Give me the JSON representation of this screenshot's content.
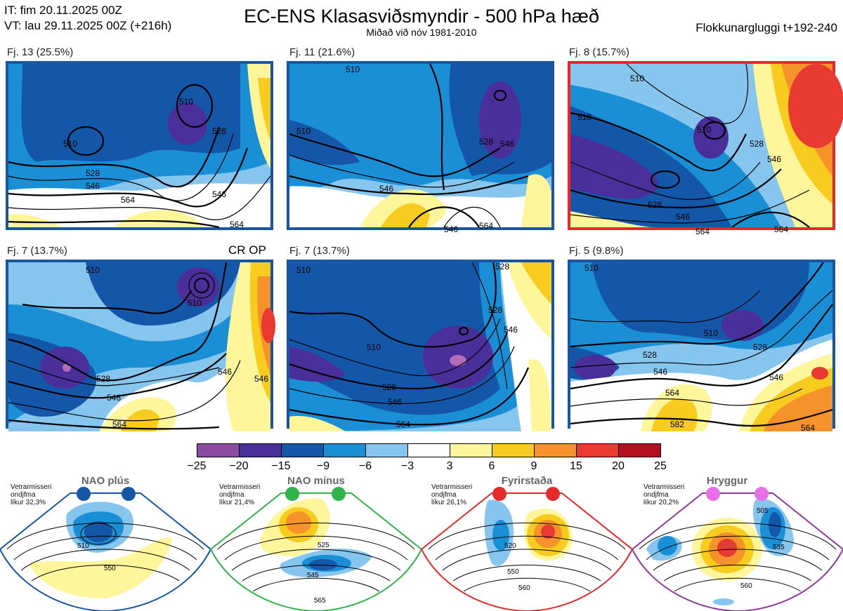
{
  "header": {
    "initial_time": "IT: fim 20.11.2025 00Z",
    "valid_time": "VT: lau 29.11.2025 00Z  (+216h)",
    "title": "EC-ENS Klasasviðsmyndir - 500 hPa hæð",
    "subtitle": "Miðað við nóv 1981-2010",
    "window": "Flokkunargluggi t+192-240"
  },
  "panels": [
    {
      "label": "Fj. 13 (25.5%)",
      "border_color": "#1a55a0",
      "contours": [
        "510",
        "510",
        "528",
        "546",
        "564",
        "564",
        "546",
        "528"
      ]
    },
    {
      "label": "Fj. 11 (21.6%)",
      "border_color": "#1a55a0",
      "contours": [
        "510",
        "510",
        "528",
        "546",
        "546",
        "564",
        "546"
      ]
    },
    {
      "label": "Fj. 8 (15.7%)",
      "border_color": "#e8282a",
      "contours": [
        "510",
        "510",
        "528",
        "546",
        "564",
        "564",
        "546",
        "528",
        "510"
      ]
    },
    {
      "label": "Fj. 7 (13.7%)",
      "border_color": "#1a55a0",
      "tag": "CR OP",
      "contours": [
        "510",
        "510",
        "528",
        "546",
        "564",
        "546",
        "546"
      ]
    },
    {
      "label": "Fj. 7 (13.7%)",
      "border_color": "#1a55a0",
      "contours": [
        "510",
        "510",
        "528",
        "546",
        "564",
        "546",
        "528",
        "528"
      ]
    },
    {
      "label": "Fj. 5 (9.8%)",
      "border_color": "#1a55a0",
      "contours": [
        "510",
        "510",
        "528",
        "546",
        "564",
        "582",
        "564",
        "546",
        "528"
      ]
    }
  ],
  "colorbar": {
    "ticks": [
      "−25",
      "−20",
      "−15",
      "−9",
      "−6",
      "−3",
      "3",
      "6",
      "9",
      "15",
      "20",
      "25"
    ],
    "colors": [
      "#8a4aa0",
      "#4a2f9a",
      "#1456a8",
      "#1a8fd6",
      "#86c6ee",
      "#ffffff",
      "#fff59a",
      "#f7cc1e",
      "#f5922a",
      "#e83a30",
      "#b3101f"
    ]
  },
  "regimes": [
    {
      "info": [
        "Vetrarmisseri",
        "ondjfma",
        "líkur 32,3%"
      ],
      "title": "NAO plús",
      "color": "#1456a8",
      "labels": [
        "510",
        "550"
      ]
    },
    {
      "info": [
        "Vetrarmisseri",
        "ondjfma",
        "líkur 21,4%"
      ],
      "title": "NAO mínus",
      "color": "#2fb34a",
      "labels": [
        "525",
        "545",
        "565"
      ]
    },
    {
      "info": [
        "Vetrarmisseri",
        "ondjfma",
        "líkur 26,1%"
      ],
      "title": "Fyrirstaða",
      "color": "#e8282a",
      "labels": [
        "520",
        "550",
        "560"
      ]
    },
    {
      "info": [
        "Vetrarmisseri",
        "ondjfma",
        "líkur 20,2%"
      ],
      "title": "Hryggur",
      "color": "#8e3a9a",
      "labels": [
        "505",
        "535",
        "560"
      ]
    }
  ]
}
